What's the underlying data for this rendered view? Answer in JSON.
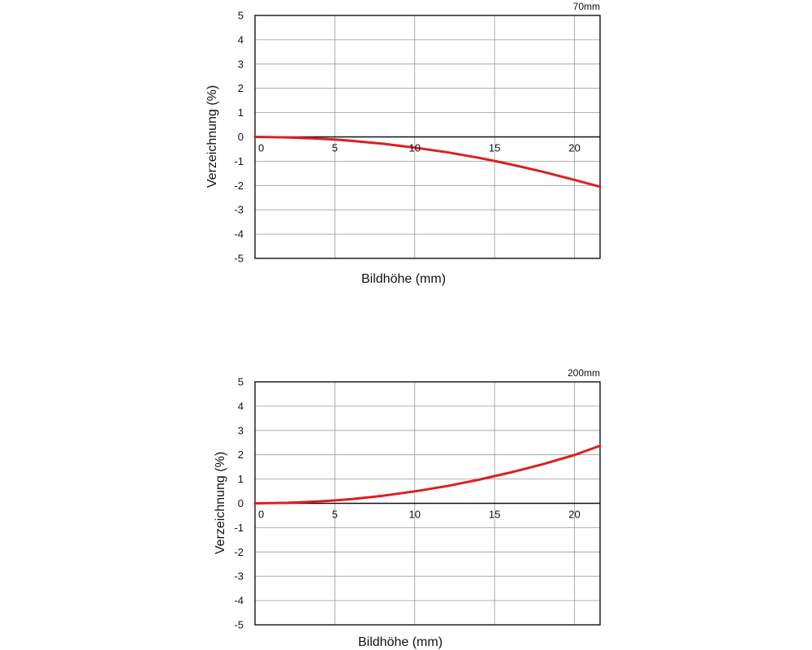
{
  "chart_data": [
    {
      "type": "line",
      "title": "70mm",
      "xlabel": "Bildhöhe (mm)",
      "ylabel": "Verzeichnung (%)",
      "xlim": [
        0,
        21.6
      ],
      "ylim": [
        -5,
        5
      ],
      "xticks": [
        "0",
        "5",
        "10",
        "15",
        "20"
      ],
      "yticks": [
        "5",
        "4",
        "3",
        "2",
        "1",
        "0",
        "-1",
        "-2",
        "-3",
        "-4",
        "-5"
      ],
      "grid": true,
      "series_color": "#dd1f1f",
      "series": [
        {
          "x": [
            0,
            2,
            4,
            5,
            6,
            8,
            10,
            12,
            14,
            15,
            16,
            18,
            20,
            21.6
          ],
          "y": [
            0,
            -0.02,
            -0.07,
            -0.11,
            -0.16,
            -0.28,
            -0.44,
            -0.63,
            -0.86,
            -0.99,
            -1.13,
            -1.43,
            -1.77,
            -2.05
          ]
        }
      ]
    },
    {
      "type": "line",
      "title": "200mm",
      "xlabel": "Bildhöhe (mm)",
      "ylabel": "Verzeichnung (%)",
      "xlim": [
        0,
        21.6
      ],
      "ylim": [
        -5,
        5
      ],
      "xticks": [
        "0",
        "5",
        "10",
        "15",
        "20"
      ],
      "yticks": [
        "5",
        "4",
        "3",
        "2",
        "1",
        "0",
        "-1",
        "-2",
        "-3",
        "-4",
        "-5"
      ],
      "grid": true,
      "series_color": "#dd1f1f",
      "series": [
        {
          "x": [
            0,
            2,
            4,
            5,
            6,
            8,
            10,
            12,
            14,
            15,
            16,
            18,
            20,
            21.6
          ],
          "y": [
            0,
            0.02,
            0.08,
            0.12,
            0.17,
            0.31,
            0.49,
            0.71,
            0.97,
            1.12,
            1.27,
            1.61,
            1.99,
            2.37
          ]
        }
      ]
    }
  ]
}
